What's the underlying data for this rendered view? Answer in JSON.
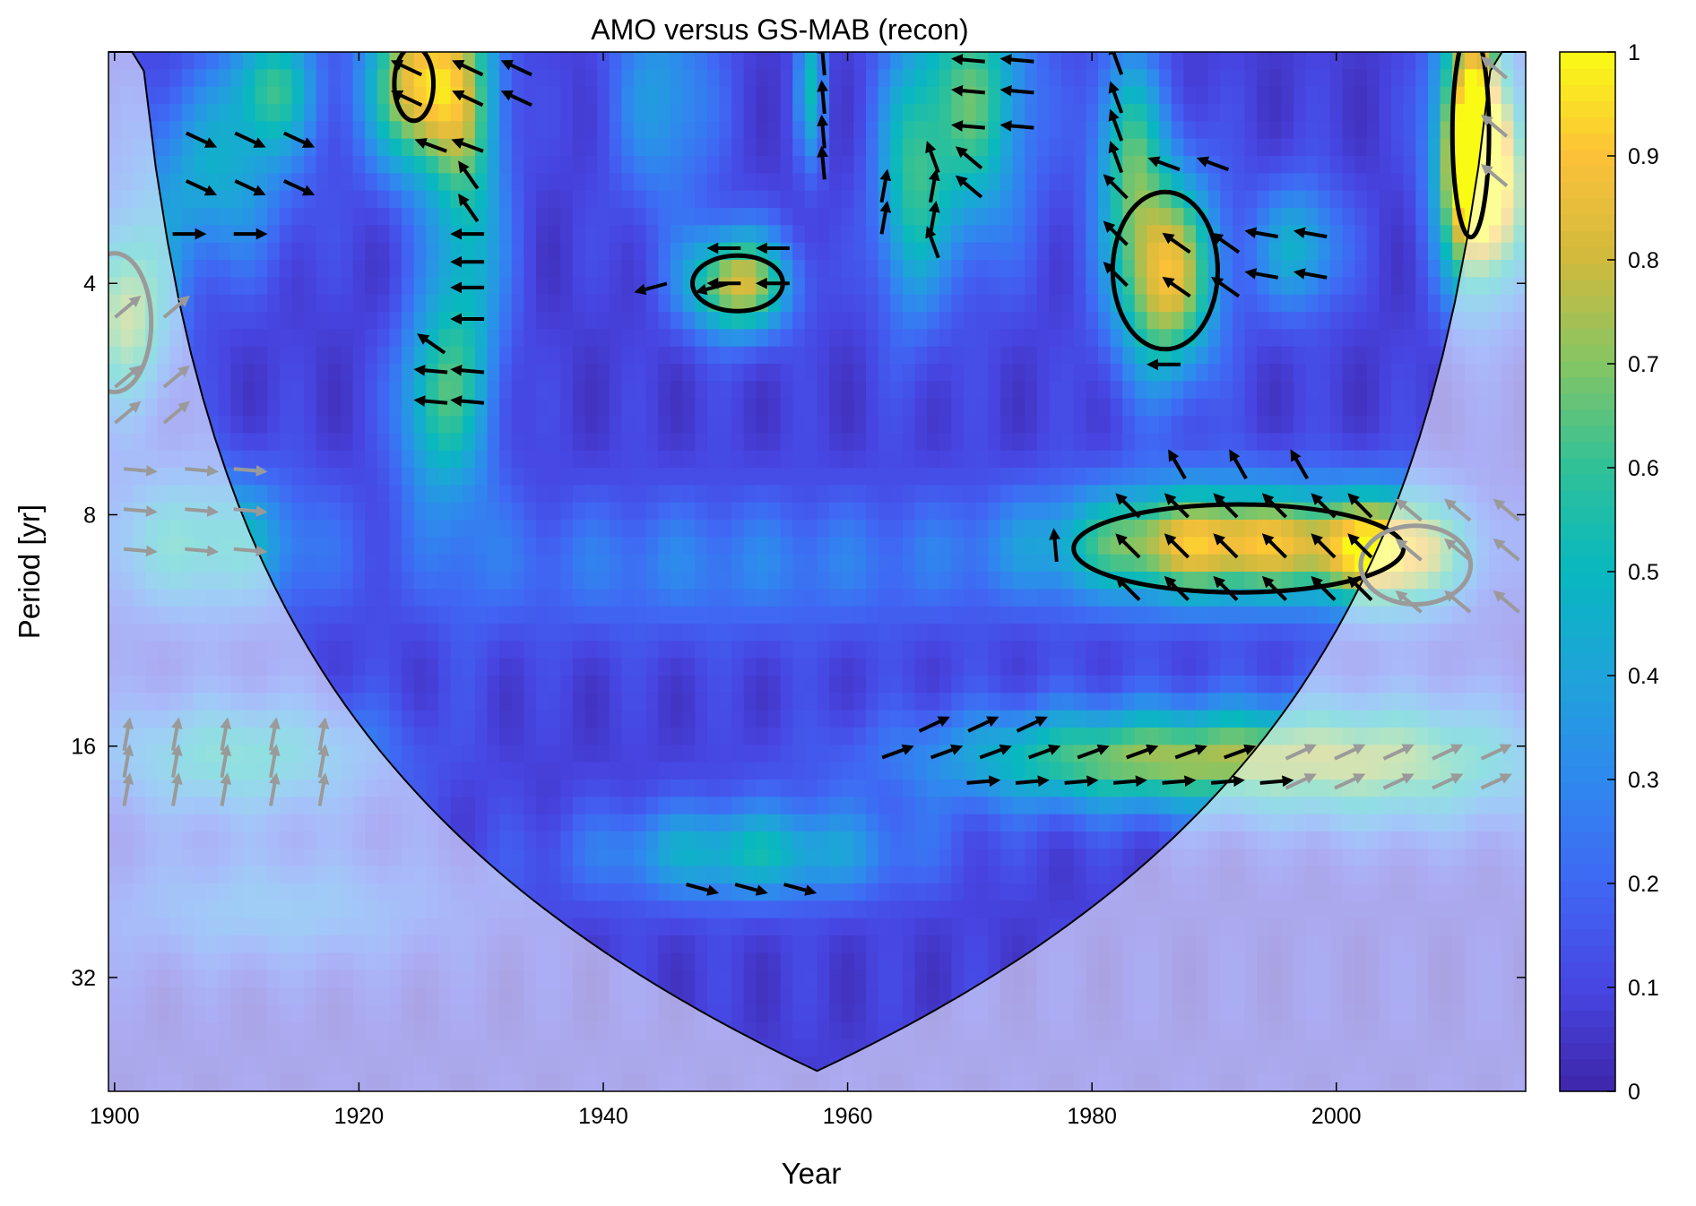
{
  "chart_data": {
    "type": "heatmap",
    "title": "AMO versus GS-MAB (recon)",
    "xlabel": "Year",
    "ylabel": "Period [yr]",
    "xlim": [
      1899.5,
      2015.5
    ],
    "ylim": [
      2,
      45
    ],
    "yscale": "log2",
    "x_ticks": [
      1900,
      1920,
      1940,
      1960,
      1980,
      2000
    ],
    "y_ticks": [
      4,
      8,
      16,
      32
    ],
    "colorbar": {
      "min": 0,
      "max": 1,
      "ticks": [
        0,
        0.1,
        0.2,
        0.3,
        0.4,
        0.5,
        0.6,
        0.7,
        0.8,
        0.9,
        1
      ],
      "colormap": [
        "#3e26a8",
        "#4745e2",
        "#4067f4",
        "#2f89ee",
        "#1fa3da",
        "#08b8bf",
        "#2fc198",
        "#84c564",
        "#d0ba3d",
        "#fcc139",
        "#f9fb15"
      ]
    },
    "background_level": 0.08,
    "coherence_blobs": [
      {
        "year": 1925,
        "period": 2.2,
        "sx": 3.0,
        "sy": 0.28,
        "amp": 0.82
      },
      {
        "year": 1929,
        "period": 3.2,
        "sx": 2.2,
        "sy": 0.85,
        "amp": 0.42
      },
      {
        "year": 1926,
        "period": 5.7,
        "sx": 2.2,
        "sy": 0.3,
        "amp": 0.42
      },
      {
        "year": 1908,
        "period": 2.9,
        "sx": 4.5,
        "sy": 0.3,
        "amp": 0.35
      },
      {
        "year": 1901,
        "period": 4.4,
        "sx": 2.5,
        "sy": 0.28,
        "amp": 0.65
      },
      {
        "year": 1907,
        "period": 8.7,
        "sx": 6.0,
        "sy": 0.22,
        "amp": 0.45
      },
      {
        "year": 1910,
        "period": 16.5,
        "sx": 8.0,
        "sy": 0.18,
        "amp": 0.45
      },
      {
        "year": 1913,
        "period": 26,
        "sx": 10.0,
        "sy": 0.18,
        "amp": 0.25
      },
      {
        "year": 1951,
        "period": 4.0,
        "sx": 3.0,
        "sy": 0.16,
        "amp": 0.75
      },
      {
        "year": 1957,
        "period": 2.2,
        "sx": 0.8,
        "sy": 0.25,
        "amp": 0.4
      },
      {
        "year": 1965,
        "period": 3.1,
        "sx": 2.0,
        "sy": 0.4,
        "amp": 0.38
      },
      {
        "year": 1970,
        "period": 2.3,
        "sx": 3.5,
        "sy": 0.45,
        "amp": 0.55
      },
      {
        "year": 1986,
        "period": 3.9,
        "sx": 3.0,
        "sy": 0.32,
        "amp": 0.8
      },
      {
        "year": 1983,
        "period": 2.6,
        "sx": 2.0,
        "sy": 0.3,
        "amp": 0.45
      },
      {
        "year": 1997,
        "period": 3.6,
        "sx": 2.5,
        "sy": 0.2,
        "amp": 0.38
      },
      {
        "year": 1991,
        "period": 8.7,
        "sx": 10.0,
        "sy": 0.18,
        "amp": 0.82
      },
      {
        "year": 2005,
        "period": 9.0,
        "sx": 4.0,
        "sy": 0.18,
        "amp": 0.65
      },
      {
        "year": 1985,
        "period": 16.6,
        "sx": 13.0,
        "sy": 0.16,
        "amp": 0.62
      },
      {
        "year": 2006,
        "period": 16.8,
        "sx": 9.0,
        "sy": 0.2,
        "amp": 0.45
      },
      {
        "year": 1952,
        "period": 22,
        "sx": 9.0,
        "sy": 0.15,
        "amp": 0.42
      },
      {
        "year": 1950,
        "period": 9.3,
        "sx": 18.0,
        "sy": 0.22,
        "amp": 0.2
      },
      {
        "year": 1913,
        "period": 2.2,
        "sx": 2.5,
        "sy": 0.2,
        "amp": 0.45
      },
      {
        "year": 2011,
        "period": 2.5,
        "sx": 2.0,
        "sy": 0.45,
        "amp": 0.85
      },
      {
        "year": 2013,
        "period": 3.0,
        "sx": 2.5,
        "sy": 0.3,
        "amp": 0.7
      },
      {
        "year": 1945,
        "period": 2.3,
        "sx": 3.0,
        "sy": 0.35,
        "amp": 0.3
      }
    ],
    "significance_contours": [
      {
        "cx": 1924.5,
        "cy": 2.2,
        "rx": 1.6,
        "ry": 0.16,
        "inside_coi": true
      },
      {
        "cx": 1951,
        "cy": 4.0,
        "rx": 3.7,
        "ry": 0.12,
        "inside_coi": true
      },
      {
        "cx": 1986,
        "cy": 3.85,
        "rx": 4.3,
        "ry": 0.34,
        "inside_coi": true
      },
      {
        "cx": 1992,
        "cy": 8.85,
        "rx": 13.5,
        "ry": 0.19,
        "inside_coi": true
      },
      {
        "cx": 2011,
        "cy": 2.55,
        "rx": 1.5,
        "ry": 0.45,
        "inside_coi": true
      },
      {
        "cx": 2006.5,
        "cy": 9.3,
        "rx": 4.5,
        "ry": 0.17,
        "inside_coi": false
      },
      {
        "cx": 1900,
        "cy": 4.5,
        "rx": 3.0,
        "ry": 0.3,
        "inside_coi": false
      }
    ],
    "phase_arrow_groups": [
      {
        "years": [
          1907,
          1911,
          1915
        ],
        "periods": [
          2.6,
          3.0
        ],
        "angle": -25
      },
      {
        "years": [
          1906,
          1911
        ],
        "periods": [
          3.45
        ],
        "angle": 0
      },
      {
        "years": [
          1924,
          1929,
          1933
        ],
        "periods": [
          2.1,
          2.3
        ],
        "angle": 155
      },
      {
        "years": [
          1926,
          1929
        ],
        "periods": [
          2.65
        ],
        "angle": 160
      },
      {
        "years": [
          1929
        ],
        "periods": [
          2.9,
          3.2
        ],
        "angle": 125
      },
      {
        "years": [
          1929
        ],
        "periods": [
          3.45,
          3.75,
          4.05,
          4.45
        ],
        "angle": 180
      },
      {
        "years": [
          1926
        ],
        "periods": [
          4.8
        ],
        "angle": 145
      },
      {
        "years": [
          1926,
          1929
        ],
        "periods": [
          5.2,
          5.7
        ],
        "angle": 175
      },
      {
        "years": [
          1944,
          1949
        ],
        "periods": [
          4.05
        ],
        "angle": 195
      },
      {
        "years": [
          1950,
          1954
        ],
        "periods": [
          3.6,
          4.0
        ],
        "angle": 180
      },
      {
        "years": [
          1958
        ],
        "periods": [
          2.05,
          2.3,
          2.55,
          2.8
        ],
        "angle": 95
      },
      {
        "years": [
          1963,
          1967
        ],
        "periods": [
          3.0,
          3.3
        ],
        "angle": 80
      },
      {
        "years": [
          1967
        ],
        "periods": [
          2.75,
          3.55
        ],
        "angle": 110
      },
      {
        "years": [
          1970,
          1974
        ],
        "periods": [
          2.05,
          2.25,
          2.5
        ],
        "angle": 175
      },
      {
        "years": [
          1970
        ],
        "periods": [
          2.75,
          3.0
        ],
        "angle": 140
      },
      {
        "years": [
          1982
        ],
        "periods": [
          2.05,
          2.3,
          2.5,
          2.75
        ],
        "angle": 110
      },
      {
        "years": [
          1982
        ],
        "periods": [
          3.0,
          3.45,
          3.9
        ],
        "angle": 135
      },
      {
        "years": [
          1986,
          1990
        ],
        "periods": [
          2.8
        ],
        "angle": 160
      },
      {
        "years": [
          1987,
          1991
        ],
        "periods": [
          3.55,
          4.05
        ],
        "angle": 145
      },
      {
        "years": [
          1994,
          1998
        ],
        "periods": [
          3.45,
          3.9
        ],
        "angle": 170
      },
      {
        "years": [
          1986
        ],
        "periods": [
          5.1
        ],
        "angle": 180
      },
      {
        "years": [
          1977
        ],
        "periods": [
          8.8
        ],
        "angle": 95
      },
      {
        "years": [
          1983,
          1987,
          1991,
          1995,
          1999,
          2002
        ],
        "periods": [
          7.8,
          8.8,
          10.0
        ],
        "angle": 135
      },
      {
        "years": [
          1987,
          1992,
          1997
        ],
        "periods": [
          6.9
        ],
        "angle": 120
      },
      {
        "years": [
          1967,
          1971,
          1975
        ],
        "periods": [
          15.0
        ],
        "angle": 25
      },
      {
        "years": [
          1964,
          1968,
          1972,
          1976,
          1980,
          1984,
          1988,
          1992
        ],
        "periods": [
          16.3
        ],
        "angle": 20
      },
      {
        "years": [
          1971,
          1975,
          1979,
          1983,
          1987,
          1991,
          1995
        ],
        "periods": [
          17.8
        ],
        "angle": 5
      },
      {
        "years": [
          1948,
          1952,
          1956
        ],
        "periods": [
          24.5
        ],
        "angle": -15
      }
    ],
    "gray_arrow_groups": [
      {
        "years": [
          1902,
          1907,
          1911
        ],
        "periods": [
          7.0,
          7.9,
          8.9
        ],
        "angle": -5
      },
      {
        "years": [
          1901,
          1905,
          1909,
          1913,
          1917
        ],
        "periods": [
          15.5,
          16.8,
          18.3
        ],
        "angle": 80
      },
      {
        "years": [
          2006,
          2010,
          2014
        ],
        "periods": [
          7.9,
          8.9,
          10.4
        ],
        "angle": 140
      },
      {
        "years": [
          2013
        ],
        "periods": [
          2.1,
          2.5,
          2.9
        ],
        "angle": 140
      },
      {
        "years": [
          1997,
          2001,
          2005,
          2009,
          2013
        ],
        "periods": [
          16.3,
          17.8
        ],
        "angle": 25
      },
      {
        "years": [
          1901,
          1905
        ],
        "periods": [
          4.3,
          5.3,
          5.9
        ],
        "angle": 40
      }
    ]
  }
}
